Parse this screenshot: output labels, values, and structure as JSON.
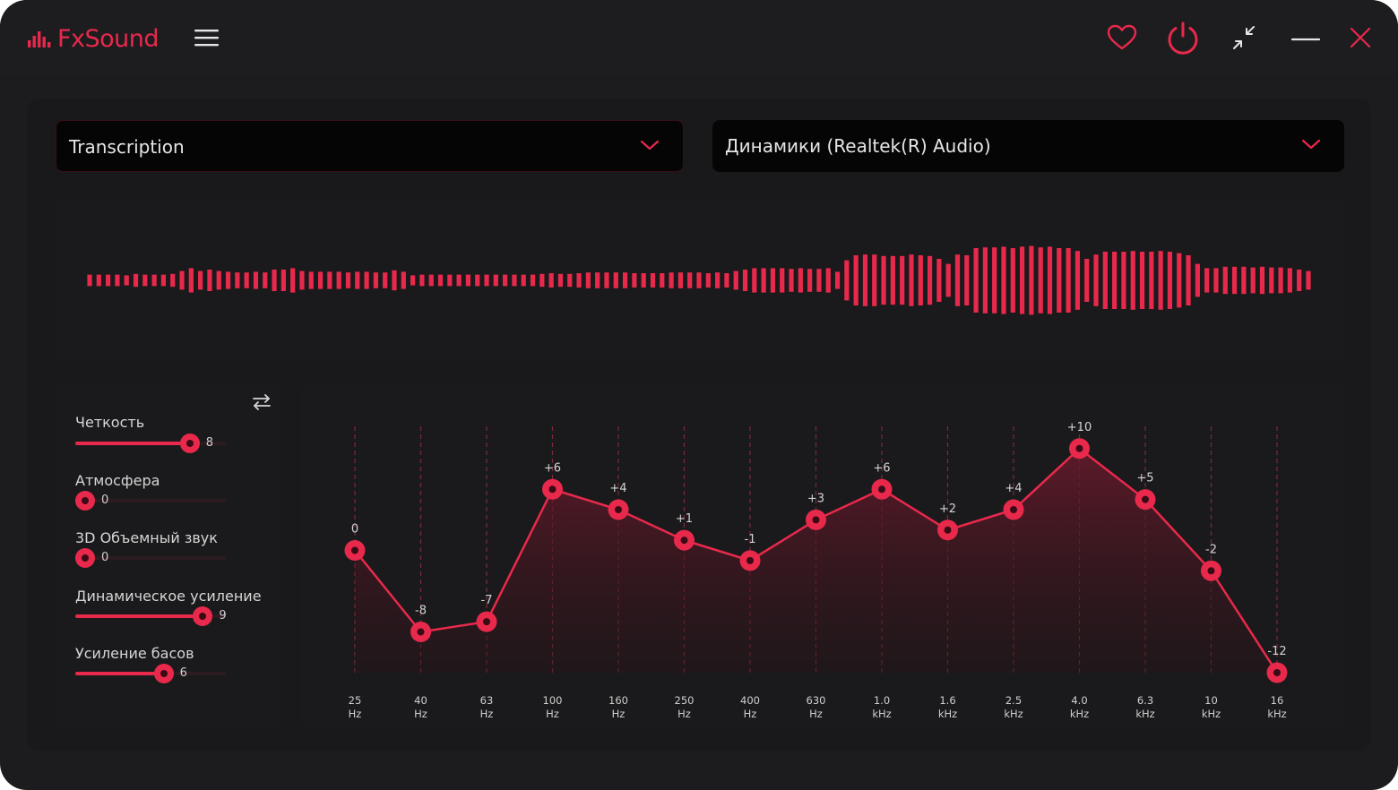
{
  "app": {
    "name": "FxSound"
  },
  "colors": {
    "accent": "#e8294b",
    "background": "#1c1c1e",
    "panel": "#19191b",
    "dropdown": "#050505"
  },
  "icons": {
    "menu": "hamburger-menu-icon",
    "favorite": "heart-icon",
    "power": "power-icon",
    "compact": "minimize-arrows-icon",
    "minimize": "minimize-icon",
    "close": "close-icon",
    "dropdown": "chevron-down-icon",
    "swap": "swap-arrows-icon"
  },
  "preset": {
    "selected": "Transcription"
  },
  "output_device": {
    "selected": "Динамики (Realtek(R) Audio)"
  },
  "effects": [
    {
      "label": "Четкость",
      "value": "8",
      "level": 0.8
    },
    {
      "label": "Атмосфера",
      "value": "0",
      "level": 0.0
    },
    {
      "label": "3D Объемный звук",
      "value": "0",
      "level": 0.0
    },
    {
      "label": "Динамическое усиление",
      "value": "9",
      "level": 0.9
    },
    {
      "label": "Усиление басов",
      "value": "6",
      "level": 0.6
    }
  ],
  "equalizer": {
    "bands": [
      {
        "freq": "25",
        "unit": "Hz",
        "gain": 0,
        "label": "0"
      },
      {
        "freq": "40",
        "unit": "Hz",
        "gain": -8,
        "label": "-8"
      },
      {
        "freq": "63",
        "unit": "Hz",
        "gain": -7,
        "label": "-7"
      },
      {
        "freq": "100",
        "unit": "Hz",
        "gain": 6,
        "label": "+6"
      },
      {
        "freq": "160",
        "unit": "Hz",
        "gain": 4,
        "label": "+4"
      },
      {
        "freq": "250",
        "unit": "Hz",
        "gain": 1,
        "label": "+1"
      },
      {
        "freq": "400",
        "unit": "Hz",
        "gain": -1,
        "label": "-1"
      },
      {
        "freq": "630",
        "unit": "Hz",
        "gain": 3,
        "label": "+3"
      },
      {
        "freq": "1.0",
        "unit": "kHz",
        "gain": 6,
        "label": "+6"
      },
      {
        "freq": "1.6",
        "unit": "kHz",
        "gain": 2,
        "label": "+2"
      },
      {
        "freq": "2.5",
        "unit": "kHz",
        "gain": 4,
        "label": "+4"
      },
      {
        "freq": "4.0",
        "unit": "kHz",
        "gain": 10,
        "label": "+10"
      },
      {
        "freq": "6.3",
        "unit": "kHz",
        "gain": 5,
        "label": "+5"
      },
      {
        "freq": "10",
        "unit": "kHz",
        "gain": -2,
        "label": "-2"
      },
      {
        "freq": "16",
        "unit": "kHz",
        "gain": -12,
        "label": "-12"
      }
    ],
    "gain_range": [
      -12,
      12
    ]
  },
  "visualizer": {
    "levels": [
      0.16,
      0.16,
      0.16,
      0.16,
      0.14,
      0.18,
      0.16,
      0.16,
      0.16,
      0.18,
      0.26,
      0.34,
      0.26,
      0.3,
      0.26,
      0.24,
      0.22,
      0.22,
      0.24,
      0.22,
      0.3,
      0.3,
      0.34,
      0.26,
      0.24,
      0.24,
      0.24,
      0.24,
      0.22,
      0.24,
      0.24,
      0.22,
      0.22,
      0.28,
      0.24,
      0.14,
      0.16,
      0.16,
      0.16,
      0.16,
      0.16,
      0.16,
      0.16,
      0.16,
      0.16,
      0.16,
      0.16,
      0.16,
      0.16,
      0.18,
      0.2,
      0.18,
      0.18,
      0.2,
      0.22,
      0.22,
      0.22,
      0.22,
      0.22,
      0.2,
      0.2,
      0.2,
      0.2,
      0.22,
      0.22,
      0.22,
      0.22,
      0.2,
      0.22,
      0.2,
      0.26,
      0.3,
      0.34,
      0.34,
      0.34,
      0.34,
      0.32,
      0.34,
      0.32,
      0.32,
      0.34,
      0.24,
      0.56,
      0.7,
      0.72,
      0.72,
      0.68,
      0.68,
      0.68,
      0.72,
      0.7,
      0.68,
      0.6,
      0.46,
      0.72,
      0.7,
      0.9,
      0.92,
      0.92,
      0.94,
      0.9,
      0.94,
      0.96,
      0.92,
      0.94,
      0.9,
      0.9,
      0.82,
      0.6,
      0.72,
      0.8,
      0.8,
      0.8,
      0.82,
      0.8,
      0.8,
      0.82,
      0.8,
      0.76,
      0.7,
      0.46,
      0.34,
      0.34,
      0.38,
      0.38,
      0.38,
      0.36,
      0.38,
      0.36,
      0.36,
      0.34,
      0.3,
      0.26
    ]
  }
}
